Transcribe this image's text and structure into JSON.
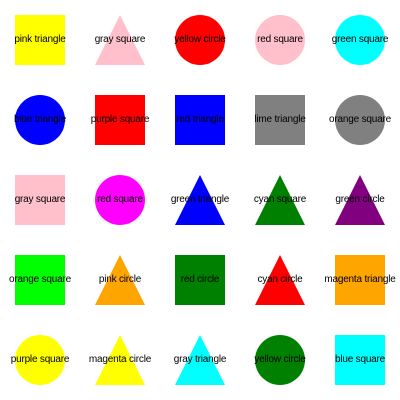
{
  "rows": [
    [
      {
        "shape": "square",
        "color": "#ffff00",
        "label": "pink triangle"
      },
      {
        "shape": "triangle",
        "color": "#ffc0cb",
        "label": "gray square"
      },
      {
        "shape": "circle",
        "color": "#ff0000",
        "label": "yellow circle"
      },
      {
        "shape": "circle",
        "color": "#ffc0cb",
        "label": "red square"
      },
      {
        "shape": "circle",
        "color": "#00ffff",
        "label": "green square"
      }
    ],
    [
      {
        "shape": "circle",
        "color": "#0000ff",
        "label": "blue triangle"
      },
      {
        "shape": "square",
        "color": "#ff0000",
        "label": "purple square"
      },
      {
        "shape": "square",
        "color": "#0000ff",
        "label": "red triangle"
      },
      {
        "shape": "square",
        "color": "#808080",
        "label": "lime triangle"
      },
      {
        "shape": "circle",
        "color": "#808080",
        "label": "orange square"
      }
    ],
    [
      {
        "shape": "square",
        "color": "#ffc0cb",
        "label": "gray square"
      },
      {
        "shape": "circle",
        "color": "#ff00ff",
        "label": "red square"
      },
      {
        "shape": "triangle",
        "color": "#0000ff",
        "label": "green triangle"
      },
      {
        "shape": "triangle",
        "color": "#008000",
        "label": "cyan square"
      },
      {
        "shape": "triangle",
        "color": "#800080",
        "label": "green circle"
      }
    ],
    [
      {
        "shape": "square",
        "color": "#00ff00",
        "label": "orange square"
      },
      {
        "shape": "triangle",
        "color": "#ffa500",
        "label": "pink circle"
      },
      {
        "shape": "square",
        "color": "#008000",
        "label": "red circle"
      },
      {
        "shape": "triangle",
        "color": "#ff0000",
        "label": "cyan circle"
      },
      {
        "shape": "square",
        "color": "#ffa500",
        "label": "magenta triangle"
      }
    ],
    [
      {
        "shape": "circle",
        "color": "#ffff00",
        "label": "purple square"
      },
      {
        "shape": "triangle",
        "color": "#ffff00",
        "label": "magenta circle"
      },
      {
        "shape": "triangle",
        "color": "#00ffff",
        "label": "gray triangle"
      },
      {
        "shape": "circle",
        "color": "#008000",
        "label": "yellow circle"
      },
      {
        "shape": "square",
        "color": "#00ffff",
        "label": "blue square"
      }
    ]
  ]
}
